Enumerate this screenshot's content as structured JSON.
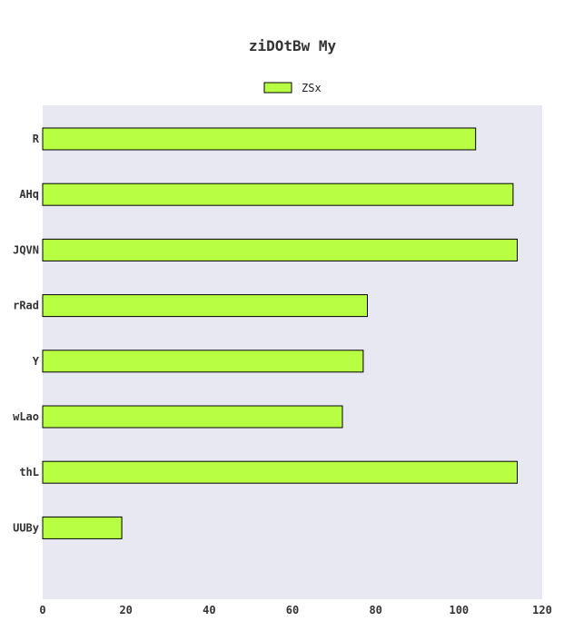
{
  "chart_data": {
    "type": "bar",
    "orientation": "horizontal",
    "title": "ziDOtBw My",
    "xlabel": "",
    "ylabel": "",
    "categories": [
      "R",
      "AHq",
      "JQVN",
      "rRad",
      "Y",
      "wLao",
      "thL",
      "UUBy"
    ],
    "series": [
      {
        "name": "ZSx",
        "values": [
          104,
          113,
          114,
          78,
          77,
          72,
          114,
          19
        ]
      }
    ],
    "xlim": [
      0,
      120
    ],
    "xticks": [
      0,
      20,
      40,
      60,
      80,
      100,
      120
    ],
    "grid": false,
    "legend": "top-center",
    "colors": {
      "bar_fill": "#b8ff44",
      "bar_stroke": "#000000",
      "plot_background": "#e8e8f3"
    }
  }
}
